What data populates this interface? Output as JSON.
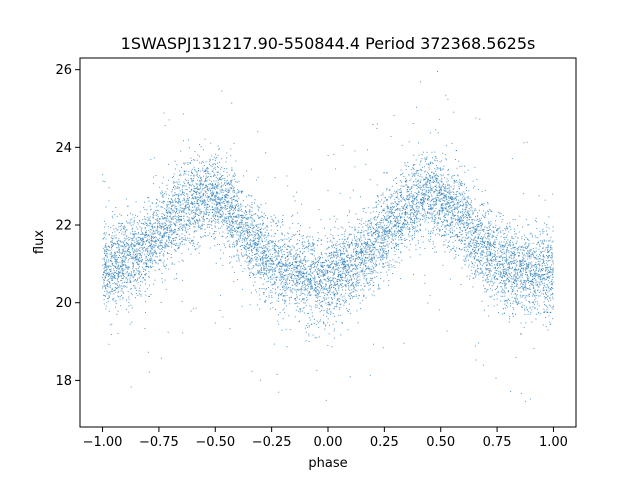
{
  "chart_data": {
    "type": "scatter",
    "title": "1SWASPJ131217.90-550844.4 Period 372368.5625s",
    "xlabel": "phase",
    "ylabel": "flux",
    "xlim": [
      -1.1,
      1.1
    ],
    "ylim": [
      16.8,
      26.3
    ],
    "xticks": [
      -1.0,
      -0.75,
      -0.5,
      -0.25,
      0.0,
      0.25,
      0.5,
      0.75,
      1.0
    ],
    "xtick_labels": [
      "−1.00",
      "−0.75",
      "−0.50",
      "−0.25",
      "0.00",
      "0.25",
      "0.50",
      "0.75",
      "1.00"
    ],
    "yticks": [
      18,
      20,
      22,
      24,
      26
    ],
    "ytick_labels": [
      "18",
      "20",
      "22",
      "24",
      "26"
    ],
    "grid": false,
    "legend": "none",
    "marker_color": "#1f77b4",
    "series": [
      {
        "phase": [
          -1.0,
          -0.95,
          -0.9,
          -0.85,
          -0.8,
          -0.75,
          -0.7,
          -0.65,
          -0.6,
          -0.55,
          -0.5,
          -0.45,
          -0.4,
          -0.35,
          -0.3,
          -0.25,
          -0.2,
          -0.15,
          -0.1,
          -0.05,
          0.0,
          0.05,
          0.1,
          0.15,
          0.2,
          0.25,
          0.3,
          0.35,
          0.4,
          0.45,
          0.5,
          0.55,
          0.6,
          0.65,
          0.7,
          0.75,
          0.8,
          0.85,
          0.9,
          0.95,
          1.0
        ],
        "flux_mean": [
          20.8,
          21.0,
          21.1,
          21.2,
          21.5,
          21.8,
          22.1,
          22.4,
          22.6,
          22.8,
          22.7,
          22.4,
          22.1,
          21.7,
          21.4,
          21.1,
          20.9,
          20.8,
          20.7,
          20.6,
          20.6,
          20.8,
          21.0,
          21.2,
          21.5,
          21.8,
          22.1,
          22.4,
          22.6,
          22.8,
          22.7,
          22.4,
          22.1,
          21.7,
          21.4,
          21.1,
          20.9,
          20.8,
          20.8,
          20.8,
          20.8
        ],
        "flux_spread": 0.55,
        "n_points": 9000
      }
    ]
  }
}
